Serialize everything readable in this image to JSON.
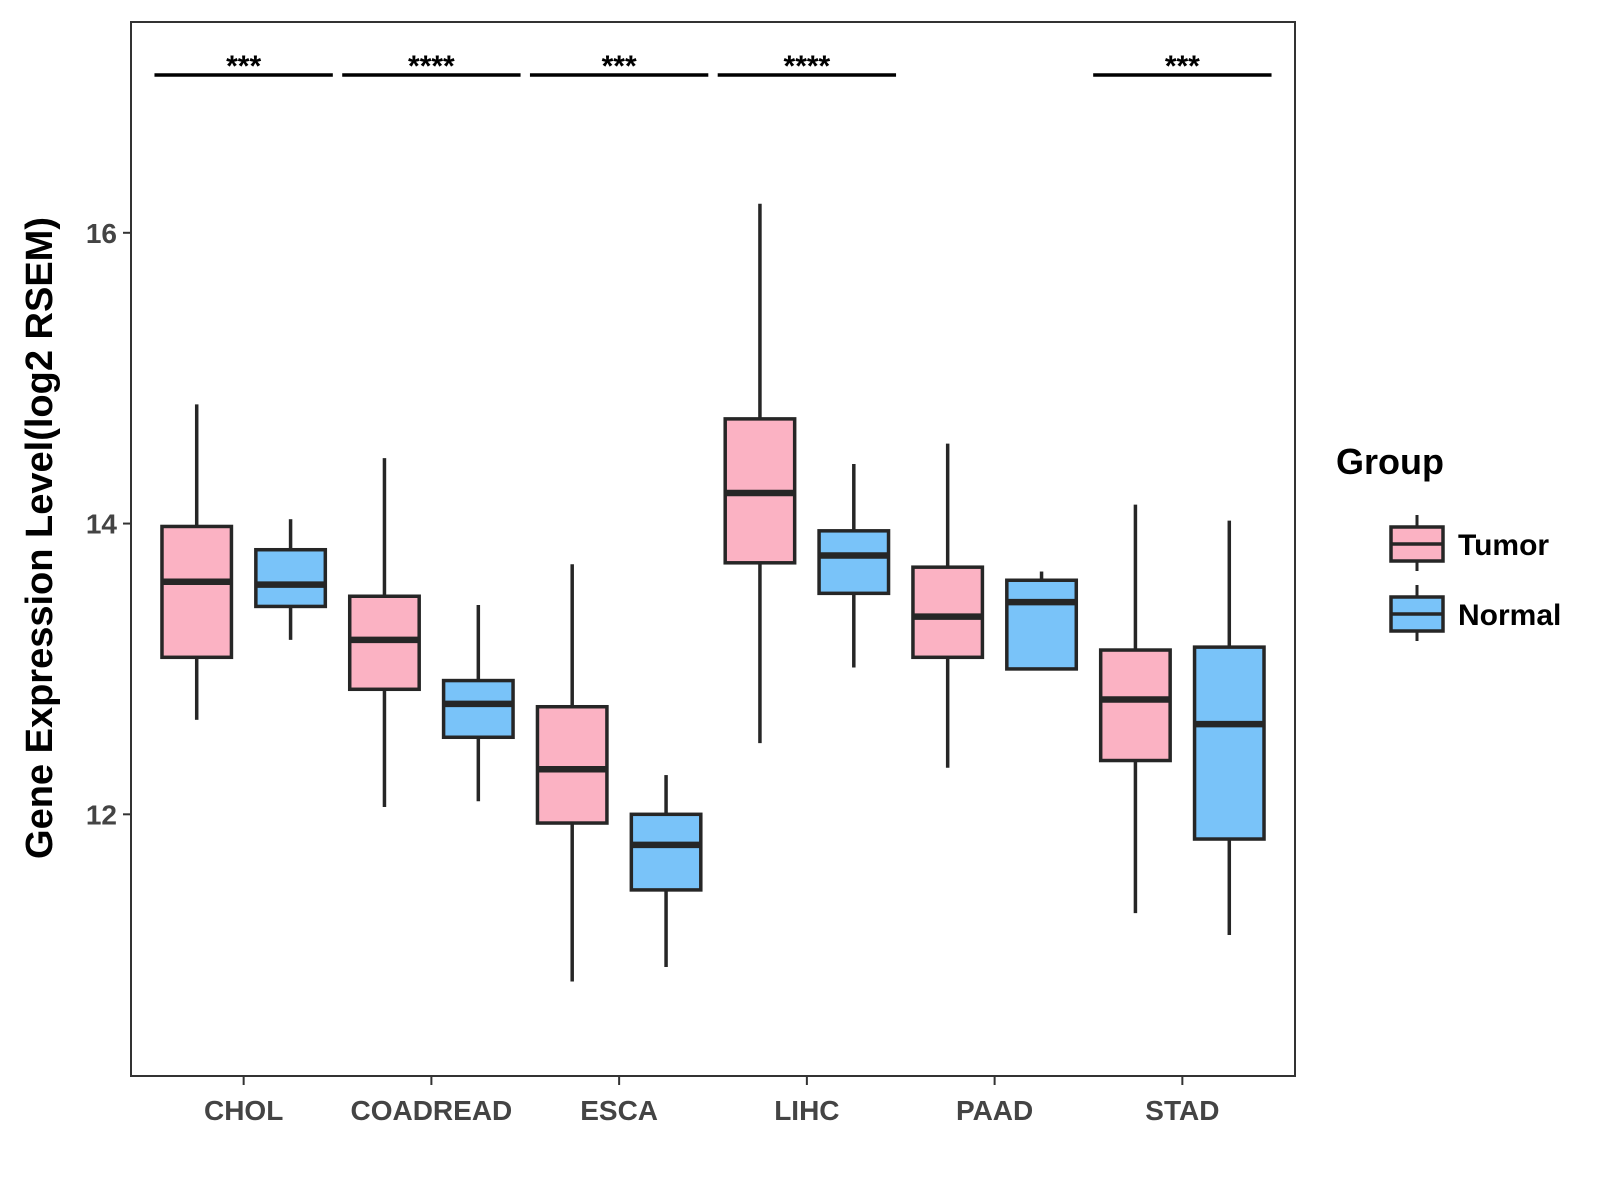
{
  "chart_data": {
    "type": "boxplot",
    "title": "",
    "xlabel": "",
    "ylabel": "Gene Expression Level(log2 RSEM)",
    "ylim": [
      10.2,
      17.45
    ],
    "yticks": [
      12,
      14,
      16
    ],
    "categories": [
      "CHOL",
      "COADREAD",
      "ESCA",
      "LIHC",
      "PAAD",
      "STAD"
    ],
    "legend_title": "Group",
    "legend_position": "right",
    "series": [
      {
        "name": "Tumor",
        "color": "#FBB2C3",
        "boxes": [
          {
            "category": "CHOL",
            "lower_whisker": 12.65,
            "q1": 13.08,
            "median": 13.6,
            "q3": 13.98,
            "upper_whisker": 14.82
          },
          {
            "category": "COADREAD",
            "lower_whisker": 12.05,
            "q1": 12.86,
            "median": 13.2,
            "q3": 13.5,
            "upper_whisker": 14.45
          },
          {
            "category": "ESCA",
            "lower_whisker": 10.85,
            "q1": 11.94,
            "median": 12.31,
            "q3": 12.74,
            "upper_whisker": 13.72
          },
          {
            "category": "LIHC",
            "lower_whisker": 12.49,
            "q1": 13.73,
            "median": 14.21,
            "q3": 14.72,
            "upper_whisker": 16.2
          },
          {
            "category": "PAAD",
            "lower_whisker": 12.32,
            "q1": 13.08,
            "median": 13.36,
            "q3": 13.7,
            "upper_whisker": 14.55
          },
          {
            "category": "STAD",
            "lower_whisker": 11.32,
            "q1": 12.37,
            "median": 12.79,
            "q3": 13.13,
            "upper_whisker": 14.13
          }
        ]
      },
      {
        "name": "Normal",
        "color": "#79C3F9",
        "boxes": [
          {
            "category": "CHOL",
            "lower_whisker": 13.2,
            "q1": 13.43,
            "median": 13.58,
            "q3": 13.82,
            "upper_whisker": 14.03
          },
          {
            "category": "COADREAD",
            "lower_whisker": 12.09,
            "q1": 12.53,
            "median": 12.76,
            "q3": 12.92,
            "upper_whisker": 13.44
          },
          {
            "category": "ESCA",
            "lower_whisker": 10.95,
            "q1": 11.48,
            "median": 11.79,
            "q3": 12.0,
            "upper_whisker": 12.27
          },
          {
            "category": "LIHC",
            "lower_whisker": 13.01,
            "q1": 13.52,
            "median": 13.78,
            "q3": 13.95,
            "upper_whisker": 14.41
          },
          {
            "category": "PAAD",
            "lower_whisker": 13.0,
            "q1": 13.0,
            "median": 13.46,
            "q3": 13.61,
            "upper_whisker": 13.67
          },
          {
            "category": "STAD",
            "lower_whisker": 11.17,
            "q1": 11.83,
            "median": 12.62,
            "q3": 13.15,
            "upper_whisker": 14.02
          }
        ]
      }
    ],
    "significance": [
      {
        "category": "CHOL",
        "label": "***"
      },
      {
        "category": "COADREAD",
        "label": "****"
      },
      {
        "category": "ESCA",
        "label": "***"
      },
      {
        "category": "LIHC",
        "label": "****"
      },
      {
        "category": "STAD",
        "label": "***"
      }
    ],
    "grid": false
  }
}
